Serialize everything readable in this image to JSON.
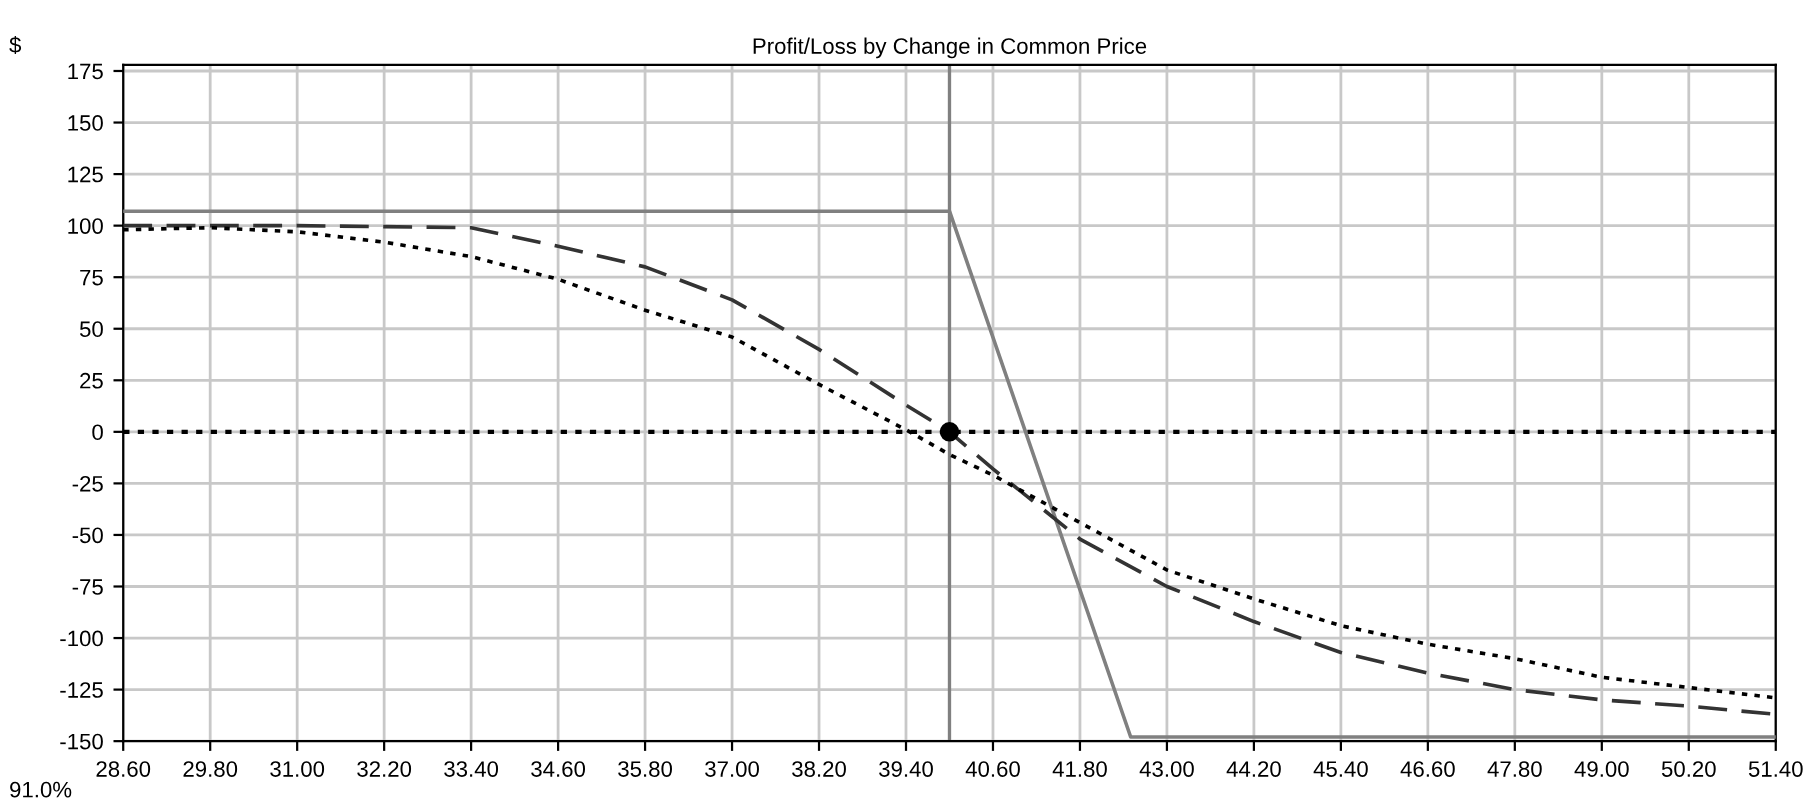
{
  "chart_data": {
    "type": "line",
    "title": "Profit/Loss by Change in Common Price",
    "ylabel": "$",
    "annotations": [
      "91.0%"
    ],
    "xlim": [
      28.6,
      51.4
    ],
    "ylim": [
      -150,
      178
    ],
    "xticks": [
      {
        "value": 28.6,
        "label": "28.60"
      },
      {
        "value": 29.8,
        "label": "29.80"
      },
      {
        "value": 31.0,
        "label": "31.00"
      },
      {
        "value": 32.2,
        "label": "32.20"
      },
      {
        "value": 33.4,
        "label": "33.40"
      },
      {
        "value": 34.6,
        "label": "34.60"
      },
      {
        "value": 35.8,
        "label": "35.80"
      },
      {
        "value": 37.0,
        "label": "37.00"
      },
      {
        "value": 38.2,
        "label": "38.20"
      },
      {
        "value": 39.4,
        "label": "39.40"
      },
      {
        "value": 40.6,
        "label": "40.60"
      },
      {
        "value": 41.8,
        "label": "41.80"
      },
      {
        "value": 43.0,
        "label": "43.00"
      },
      {
        "value": 44.2,
        "label": "44.20"
      },
      {
        "value": 45.4,
        "label": "45.40"
      },
      {
        "value": 46.6,
        "label": "46.60"
      },
      {
        "value": 47.8,
        "label": "47.80"
      },
      {
        "value": 49.0,
        "label": "49.00"
      },
      {
        "value": 50.2,
        "label": "50.20"
      },
      {
        "value": 51.4,
        "label": "51.40"
      }
    ],
    "yticks": [
      -150,
      -125,
      -100,
      -75,
      -50,
      -25,
      0,
      25,
      50,
      75,
      100,
      125,
      150,
      175
    ],
    "grid": true,
    "legend": false,
    "ref_lines": [
      {
        "axis": "y",
        "value": 0,
        "color": "#000000",
        "line_style": "dotted"
      },
      {
        "axis": "x",
        "value": 40.0,
        "color": "#808080",
        "line_style": "solid"
      }
    ],
    "series": [
      {
        "color": "#808080",
        "line_style": "solid",
        "x": [
          28.6,
          40.0,
          42.5,
          51.4
        ],
        "values": [
          107,
          107,
          -148,
          -148
        ]
      },
      {
        "color": "#333333",
        "line_style": "dashed",
        "x": [
          28.6,
          31.0,
          33.4,
          34.6,
          35.8,
          37.0,
          38.2,
          39.4,
          40.0,
          40.6,
          41.8,
          43.0,
          44.2,
          45.4,
          46.6,
          47.8,
          49.0,
          50.2,
          51.4
        ],
        "values": [
          100,
          100,
          99,
          90,
          80,
          64,
          40,
          13,
          0,
          -18,
          -52,
          -75,
          -92,
          -107,
          -117,
          -125,
          -130,
          -133,
          -137
        ]
      },
      {
        "color": "#000000",
        "line_style": "dotted",
        "x": [
          28.6,
          29.8,
          31.0,
          32.2,
          33.4,
          34.6,
          35.8,
          37.0,
          38.2,
          39.4,
          40.0,
          40.6,
          41.8,
          43.0,
          44.2,
          45.4,
          46.6,
          47.8,
          49.0,
          50.2,
          51.4
        ],
        "values": [
          98,
          99,
          97,
          92,
          85,
          74,
          59,
          46,
          23,
          1,
          -11,
          -21,
          -44,
          -67,
          -81,
          -94,
          -103,
          -110,
          -119,
          -124,
          -129
        ]
      },
      {
        "type": "scatter",
        "color": "#000000",
        "marker": "circle",
        "x": [
          40.0
        ],
        "values": [
          0
        ]
      }
    ]
  }
}
